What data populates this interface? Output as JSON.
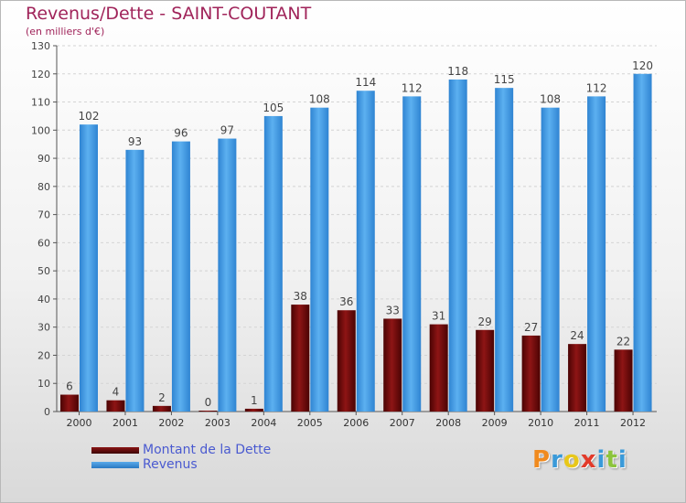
{
  "chart_data": {
    "type": "bar",
    "title": "Revenus/Dette - SAINT-COUTANT",
    "subtitle": "(en milliers d'€)",
    "categories": [
      "2000",
      "2001",
      "2002",
      "2003",
      "2004",
      "2005",
      "2006",
      "2007",
      "2008",
      "2009",
      "2010",
      "2011",
      "2012"
    ],
    "series": [
      {
        "name": "Montant de la Dette",
        "values": [
          6,
          4,
          2,
          0,
          1,
          38,
          36,
          33,
          31,
          29,
          27,
          24,
          22
        ],
        "color": "#6b0a0a"
      },
      {
        "name": "Revenus",
        "values": [
          102,
          93,
          96,
          97,
          105,
          108,
          114,
          112,
          118,
          115,
          108,
          112,
          120
        ],
        "color": "#3d93dd"
      }
    ],
    "yticks": [
      0,
      10,
      20,
      30,
      40,
      50,
      60,
      70,
      80,
      90,
      100,
      110,
      120,
      130
    ],
    "ylim": [
      0,
      130
    ],
    "grid": true,
    "legend_position": "bottom-left"
  },
  "branding": {
    "logo_text": "Proxiti",
    "logo_colors": [
      "#f08a1e",
      "#3a9ad9",
      "#e8c71a",
      "#e23a2a",
      "#3a9ad9",
      "#8cc43c",
      "#3a9ad9"
    ]
  }
}
